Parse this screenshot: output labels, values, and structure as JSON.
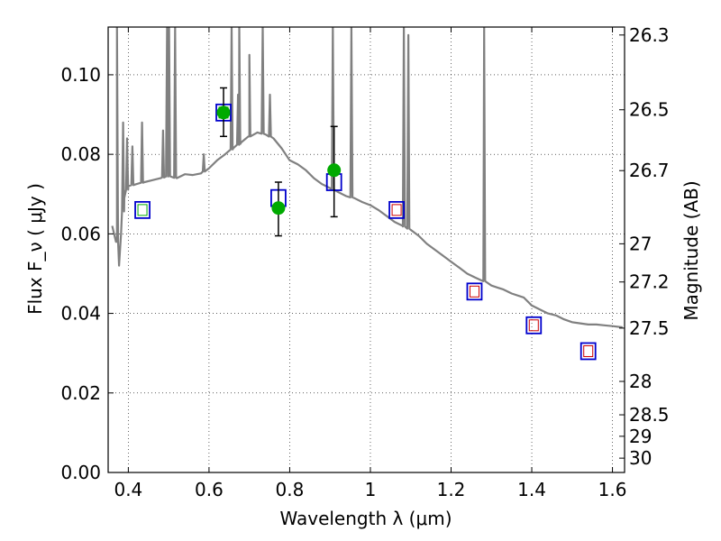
{
  "chart_data": {
    "type": "scatter",
    "xlabel": "Wavelength  λ (μm)",
    "ylabel": "Flux  F_ν  ( μJy )",
    "y2label": "Magnitude (AB)",
    "xlim": [
      0.35,
      1.63
    ],
    "ylim": [
      0.0,
      0.112
    ],
    "x_ticks": [
      0.4,
      0.6,
      0.8,
      1.0,
      1.2,
      1.4,
      1.6
    ],
    "x_tick_labels": [
      "0.4",
      "0.6",
      "0.8",
      "1",
      "1.2",
      "1.4",
      "1.6"
    ],
    "y_ticks": [
      0.0,
      0.02,
      0.04,
      0.06,
      0.08,
      0.1
    ],
    "y_tick_labels": [
      "0.00",
      "0.02",
      "0.04",
      "0.06",
      "0.08",
      "0.10"
    ],
    "y2_ticks": [
      {
        "label": "26.3",
        "flux": 0.11
      },
      {
        "label": "26.5",
        "flux": 0.0912
      },
      {
        "label": "26.7",
        "flux": 0.0759
      },
      {
        "label": "27",
        "flux": 0.0575
      },
      {
        "label": "27.2",
        "flux": 0.0479
      },
      {
        "label": "27.5",
        "flux": 0.0363
      },
      {
        "label": "28",
        "flux": 0.0229
      },
      {
        "label": "28.5",
        "flux": 0.0145
      },
      {
        "label": "29",
        "flux": 0.0091
      },
      {
        "label": "30",
        "flux": 0.0036
      }
    ],
    "grid": true,
    "grid_style": "dotted",
    "colors": {
      "model": "#808080",
      "obs_point": "#00aa00",
      "model_box": "#0000cc",
      "model_inner": "#cc0000",
      "errorbar": "#000000"
    },
    "observed": [
      {
        "x": 0.636,
        "y": 0.0905,
        "yerr_lo": 0.006,
        "yerr_hi": 0.0062
      },
      {
        "x": 0.772,
        "y": 0.0665,
        "yerr_lo": 0.007,
        "yerr_hi": 0.0065
      },
      {
        "x": 0.91,
        "y": 0.076,
        "yerr_lo": 0.0117,
        "yerr_hi": 0.011
      }
    ],
    "model_photometry": [
      {
        "x": 0.435,
        "y": 0.066,
        "inner": "green"
      },
      {
        "x": 0.636,
        "y": 0.0905,
        "inner": "green"
      },
      {
        "x": 0.772,
        "y": 0.069,
        "inner": "none"
      },
      {
        "x": 0.91,
        "y": 0.073,
        "inner": "none"
      },
      {
        "x": 1.065,
        "y": 0.066,
        "inner": "red"
      },
      {
        "x": 1.258,
        "y": 0.0455,
        "inner": "red"
      },
      {
        "x": 1.405,
        "y": 0.037,
        "inner": "red"
      },
      {
        "x": 1.54,
        "y": 0.0305,
        "inner": "red"
      }
    ],
    "model_spectrum": {
      "continuum": [
        [
          0.36,
          0.062
        ],
        [
          0.372,
          0.058
        ],
        [
          0.377,
          0.052
        ],
        [
          0.382,
          0.06
        ],
        [
          0.39,
          0.069
        ],
        [
          0.4,
          0.072
        ],
        [
          0.42,
          0.0725
        ],
        [
          0.44,
          0.073
        ],
        [
          0.46,
          0.0735
        ],
        [
          0.48,
          0.074
        ],
        [
          0.5,
          0.0745
        ],
        [
          0.52,
          0.074
        ],
        [
          0.54,
          0.075
        ],
        [
          0.56,
          0.0748
        ],
        [
          0.58,
          0.0752
        ],
        [
          0.6,
          0.0765
        ],
        [
          0.62,
          0.0785
        ],
        [
          0.64,
          0.08
        ],
        [
          0.66,
          0.0815
        ],
        [
          0.68,
          0.083
        ],
        [
          0.7,
          0.0845
        ],
        [
          0.72,
          0.0855
        ],
        [
          0.74,
          0.085
        ],
        [
          0.76,
          0.084
        ],
        [
          0.78,
          0.0815
        ],
        [
          0.8,
          0.0785
        ],
        [
          0.82,
          0.0775
        ],
        [
          0.84,
          0.076
        ],
        [
          0.86,
          0.074
        ],
        [
          0.88,
          0.0725
        ],
        [
          0.9,
          0.0715
        ],
        [
          0.92,
          0.0705
        ],
        [
          0.94,
          0.0695
        ],
        [
          0.96,
          0.069
        ],
        [
          0.98,
          0.068
        ],
        [
          1.0,
          0.0672
        ],
        [
          1.02,
          0.066
        ],
        [
          1.04,
          0.0645
        ],
        [
          1.06,
          0.063
        ],
        [
          1.08,
          0.062
        ],
        [
          1.1,
          0.061
        ],
        [
          1.12,
          0.0595
        ],
        [
          1.14,
          0.0575
        ],
        [
          1.16,
          0.056
        ],
        [
          1.18,
          0.0545
        ],
        [
          1.2,
          0.053
        ],
        [
          1.22,
          0.0515
        ],
        [
          1.24,
          0.05
        ],
        [
          1.26,
          0.049
        ],
        [
          1.28,
          0.0482
        ],
        [
          1.3,
          0.047
        ],
        [
          1.315,
          0.0465
        ],
        [
          1.33,
          0.046
        ],
        [
          1.35,
          0.045
        ],
        [
          1.38,
          0.044
        ],
        [
          1.4,
          0.042
        ],
        [
          1.42,
          0.041
        ],
        [
          1.44,
          0.04
        ],
        [
          1.46,
          0.0395
        ],
        [
          1.48,
          0.0385
        ],
        [
          1.5,
          0.0378
        ],
        [
          1.52,
          0.0375
        ],
        [
          1.54,
          0.0372
        ],
        [
          1.56,
          0.0372
        ],
        [
          1.58,
          0.037
        ],
        [
          1.6,
          0.0368
        ],
        [
          1.625,
          0.0365
        ]
      ],
      "emission_lines": [
        {
          "x": 0.372,
          "peak": 0.112
        },
        {
          "x": 0.387,
          "peak": 0.088
        },
        {
          "x": 0.397,
          "peak": 0.084
        },
        {
          "x": 0.41,
          "peak": 0.082
        },
        {
          "x": 0.434,
          "peak": 0.088
        },
        {
          "x": 0.486,
          "peak": 0.086
        },
        {
          "x": 0.496,
          "peak": 0.112
        },
        {
          "x": 0.501,
          "peak": 0.112
        },
        {
          "x": 0.516,
          "peak": 0.112
        },
        {
          "x": 0.587,
          "peak": 0.08
        },
        {
          "x": 0.656,
          "peak": 0.112
        },
        {
          "x": 0.672,
          "peak": 0.095
        },
        {
          "x": 0.675,
          "peak": 0.112
        },
        {
          "x": 0.7,
          "peak": 0.105
        },
        {
          "x": 0.733,
          "peak": 0.112
        },
        {
          "x": 0.751,
          "peak": 0.095
        },
        {
          "x": 0.907,
          "peak": 0.112
        },
        {
          "x": 0.953,
          "peak": 0.112
        },
        {
          "x": 1.083,
          "peak": 0.112
        },
        {
          "x": 1.094,
          "peak": 0.11
        },
        {
          "x": 1.282,
          "peak": 0.112
        }
      ]
    }
  }
}
